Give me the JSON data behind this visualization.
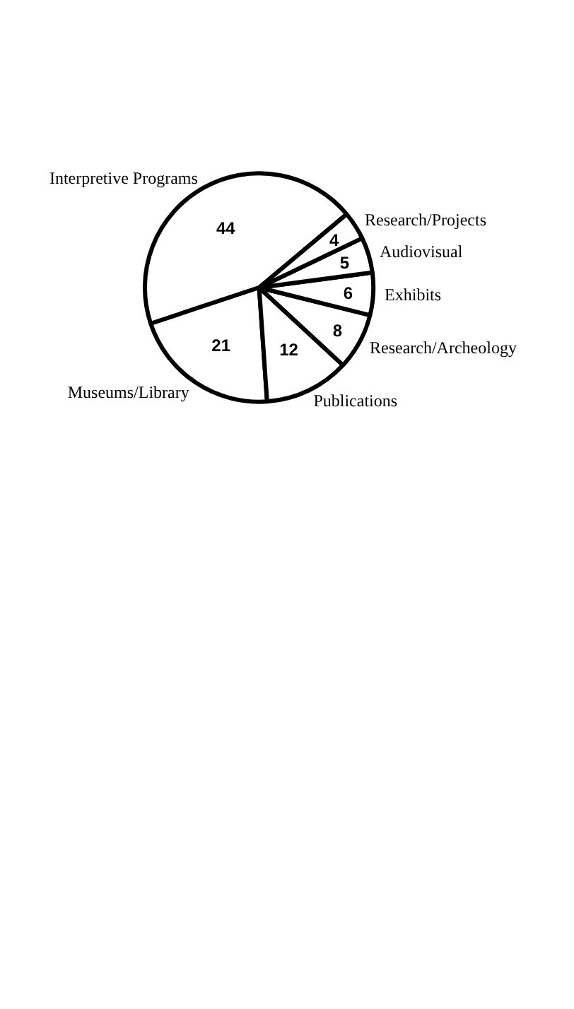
{
  "chart_data": {
    "type": "pie",
    "categories": [
      "Interpretive Programs",
      "Museums/Library",
      "Publications",
      "Research/Archeology",
      "Exhibits",
      "Audiovisual",
      "Research/Projects"
    ],
    "values": [
      44,
      21,
      12,
      8,
      6,
      5,
      4
    ],
    "colors": [
      "#ffffff",
      "#ffffff",
      "#ffffff",
      "#ffffff",
      "#ffffff",
      "#ffffff",
      "#ffffff"
    ],
    "data_labels": true
  }
}
